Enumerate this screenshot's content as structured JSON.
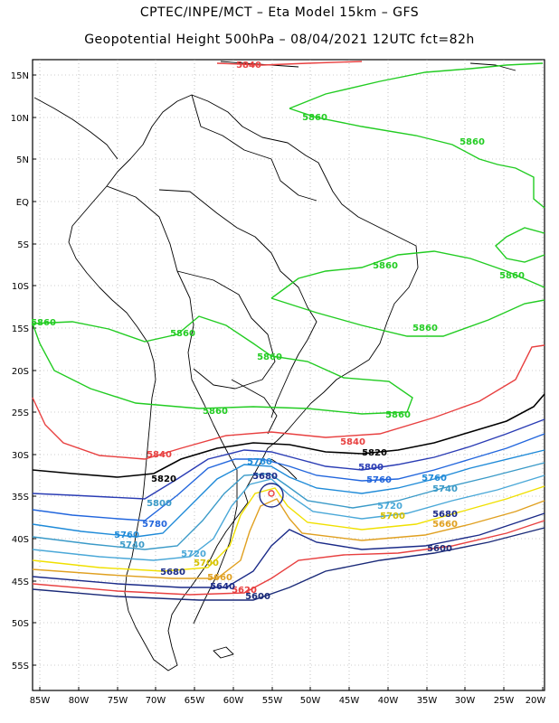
{
  "header": {
    "line1": "CPTEC/INPE/MCT –  Eta Model 15km – GFS",
    "line2": "Geopotential Height 500hPa – 08/04/2021 12UTC fct=82h"
  },
  "map": {
    "lat_labels": [
      "15N",
      "10N",
      "5N",
      "EQ",
      "5S",
      "10S",
      "15S",
      "20S",
      "25S",
      "30S",
      "35S",
      "40S",
      "45S",
      "50S",
      "55S"
    ],
    "lon_labels": [
      "85W",
      "80W",
      "75W",
      "70W",
      "65W",
      "60W",
      "55W",
      "50W",
      "45W",
      "40W",
      "35W",
      "30W",
      "25W",
      "20W"
    ],
    "colors": {
      "c5860": "#22cc22",
      "c5840": "#e84040",
      "c5820": "#000000",
      "c5800": "#2a3cb4",
      "c5780": "#2266dd",
      "c5760": "#1e8ad8",
      "c5740": "#3a9ac8",
      "c5720": "#4aa8d8",
      "c5700": "#f0e000",
      "c5680": "#e0a020",
      "c5660": "#1a2a88",
      "c5620": "#e84040",
      "c5600": "#1a2a78",
      "coast": "#000000",
      "grid": "#999999"
    },
    "contour_labels": [
      {
        "id": "g1",
        "text": "5840",
        "color": "#e84040"
      },
      {
        "id": "g2",
        "text": "5860",
        "color": "#22cc22"
      },
      {
        "id": "g3",
        "text": "5860",
        "color": "#22cc22"
      },
      {
        "id": "g4",
        "text": "5860",
        "color": "#22cc22"
      },
      {
        "id": "g5",
        "text": "5860",
        "color": "#22cc22"
      },
      {
        "id": "g6",
        "text": "5860",
        "color": "#22cc22"
      },
      {
        "id": "g7",
        "text": "5860",
        "color": "#22cc22"
      },
      {
        "id": "g8",
        "text": "5860",
        "color": "#22cc22"
      },
      {
        "id": "g9",
        "text": "5860",
        "color": "#22cc22"
      },
      {
        "id": "g10",
        "text": "5860",
        "color": "#22cc22"
      },
      {
        "id": "g11",
        "text": "5860",
        "color": "#22cc22"
      },
      {
        "id": "g12",
        "text": "5860",
        "color": "#22cc22"
      },
      {
        "id": "g13",
        "text": "5840",
        "color": "#e84040"
      },
      {
        "id": "g14",
        "text": "5840",
        "color": "#e84040"
      },
      {
        "id": "g15",
        "text": "5820",
        "color": "#000000"
      },
      {
        "id": "g16",
        "text": "5820",
        "color": "#000000"
      },
      {
        "id": "g17",
        "text": "5800",
        "color": "#2a3cb4"
      },
      {
        "id": "g18",
        "text": "5780",
        "color": "#2266dd"
      },
      {
        "id": "g19",
        "text": "5760",
        "color": "#1e8ad8"
      },
      {
        "id": "g20",
        "text": "5760",
        "color": "#1e8ad8"
      },
      {
        "id": "g21",
        "text": "5740",
        "color": "#3a9ac8"
      },
      {
        "id": "g22",
        "text": "5720",
        "color": "#4aa8d8"
      },
      {
        "id": "g23",
        "text": "5700",
        "color": "#d4c000"
      },
      {
        "id": "g24",
        "text": "5680",
        "color": "#1a2a88"
      },
      {
        "id": "g25",
        "text": "5660",
        "color": "#1a2a88"
      },
      {
        "id": "g26",
        "text": "5600",
        "color": "#1a2a78"
      },
      {
        "id": "g27",
        "text": "5760",
        "color": "#1e8ad8"
      },
      {
        "id": "g28",
        "text": "5800",
        "color": "#3a9ac8"
      },
      {
        "id": "g29",
        "text": "5780",
        "color": "#2266dd"
      },
      {
        "id": "g30",
        "text": "5760",
        "color": "#1e8ad8"
      },
      {
        "id": "g31",
        "text": "5740",
        "color": "#3a9ac8"
      },
      {
        "id": "g32",
        "text": "5720",
        "color": "#4aa8d8"
      },
      {
        "id": "g33",
        "text": "5700",
        "color": "#d4c000"
      },
      {
        "id": "g34",
        "text": "5680",
        "color": "#1a2a88"
      },
      {
        "id": "g35",
        "text": "5660",
        "color": "#e0a020"
      },
      {
        "id": "g36",
        "text": "5620",
        "color": "#e84040"
      },
      {
        "id": "g37",
        "text": "5600",
        "color": "#1a2a78"
      },
      {
        "id": "g38",
        "text": "5640",
        "color": "#1a2a88"
      },
      {
        "id": "g39",
        "text": "5680",
        "color": "#1a2a88"
      },
      {
        "id": "g40",
        "text": "5660",
        "color": "#e0a020"
      },
      {
        "id": "g41",
        "text": "5720",
        "color": "#2a3cb4"
      },
      {
        "id": "g42",
        "text": "5700",
        "color": "#d4c000"
      }
    ]
  }
}
